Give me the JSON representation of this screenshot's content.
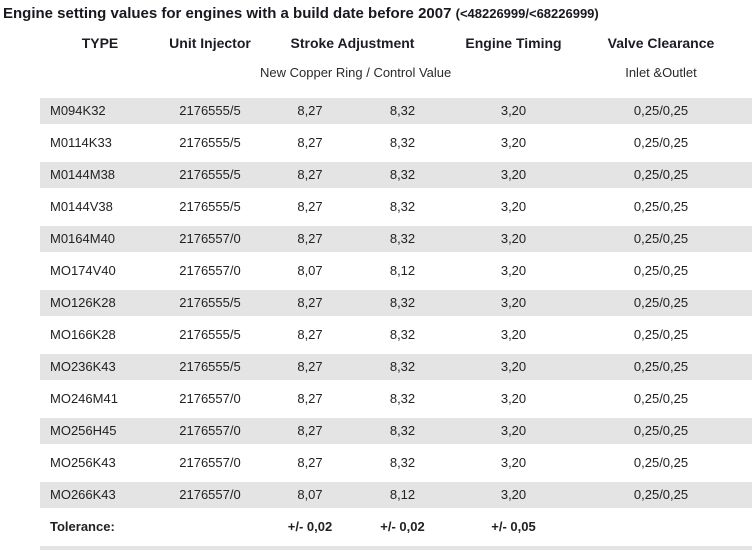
{
  "title": {
    "main": "Engine setting values for engines with a build date before 2007",
    "suffix": "(<48226999/<68226999)"
  },
  "table": {
    "headers": {
      "type": "TYPE",
      "unit_injector": "Unit Injector",
      "stroke_adjustment": "Stroke Adjustment",
      "engine_timing": "Engine Timing",
      "valve_clearance": "Valve Clearance"
    },
    "subheaders": {
      "stroke_adjustment": "New Copper Ring / Control Value",
      "valve_clearance": "Inlet &Outlet"
    },
    "rows": [
      [
        "M094K32",
        "2176555/5",
        "8,27",
        "8,32",
        "3,20",
        "0,25/0,25"
      ],
      [
        "M0114K33",
        "2176555/5",
        "8,27",
        "8,32",
        "3,20",
        "0,25/0,25"
      ],
      [
        "M0144M38",
        "2176555/5",
        "8,27",
        "8,32",
        "3,20",
        "0,25/0,25"
      ],
      [
        "M0144V38",
        "2176555/5",
        "8,27",
        "8,32",
        "3,20",
        "0,25/0,25"
      ],
      [
        "M0164M40",
        "2176557/0",
        "8,27",
        "8,32",
        "3,20",
        "0,25/0,25"
      ],
      [
        "MO174V40",
        "2176557/0",
        "8,07",
        "8,12",
        "3,20",
        "0,25/0,25"
      ],
      [
        "MO126K28",
        "2176555/5",
        "8,27",
        "8,32",
        "3,20",
        "0,25/0,25"
      ],
      [
        "MO166K28",
        "2176555/5",
        "8,27",
        "8,32",
        "3,20",
        "0,25/0,25"
      ],
      [
        "MO236K43",
        "2176555/5",
        "8,27",
        "8,32",
        "3,20",
        "0,25/0,25"
      ],
      [
        "MO246M41",
        "2176557/0",
        "8,27",
        "8,32",
        "3,20",
        "0,25/0,25"
      ],
      [
        "MO256H45",
        "2176557/0",
        "8,27",
        "8,32",
        "3,20",
        "0,25/0,25"
      ],
      [
        "MO256K43",
        "2176557/0",
        "8,27",
        "8,32",
        "3,20",
        "0,25/0,25"
      ],
      [
        "MO266K43",
        "2176557/0",
        "8,07",
        "8,12",
        "3,20",
        "0,25/0,25"
      ]
    ],
    "tolerance": {
      "label": "Tolerance:",
      "stroke_1": "+/- 0,02",
      "stroke_2": "+/- 0,02",
      "engine_timing": "+/- 0,05"
    }
  },
  "colors": {
    "stripe": "#e4e4e4",
    "text": "#222222",
    "title": "#18181f"
  }
}
